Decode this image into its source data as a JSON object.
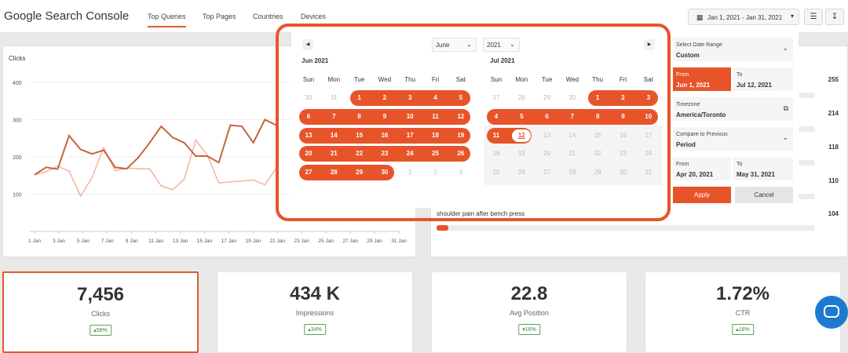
{
  "app": {
    "title": "Google Search Console"
  },
  "tabs": [
    {
      "label": "Top Queries",
      "active": true
    },
    {
      "label": "Top Pages",
      "active": false
    },
    {
      "label": "Countries",
      "active": false
    },
    {
      "label": "Devices",
      "active": false
    }
  ],
  "toolbar": {
    "date_range": "Jan 1, 2021 - Jan 31, 2021",
    "icons": [
      "calendar-icon",
      "filter-sliders-icon",
      "download-icon"
    ]
  },
  "chart": {
    "label": "Clicks",
    "colors": {
      "primary": "#c8633c",
      "secondary": "#f2b9a3"
    }
  },
  "chart_data": {
    "type": "line",
    "title": "",
    "ylabel": "Clicks",
    "xlabel": "",
    "ylim": [
      0,
      400
    ],
    "yticks": [
      "400",
      "300",
      "200",
      "100"
    ],
    "x_tick_labels": [
      "1 Jan",
      "3 Jan",
      "5 Jan",
      "7 Jan",
      "9 Jan",
      "11 Jan",
      "13 Jan",
      "15 Jan",
      "17 Jan",
      "19 Jan",
      "21 Jan",
      "23 Jan",
      "25 Jan",
      "27 Jan",
      "29 Jan",
      "31 Jan"
    ],
    "x": [
      1,
      2,
      3,
      4,
      5,
      6,
      7,
      8,
      9,
      10,
      11,
      12,
      13,
      14,
      15,
      16,
      17,
      18,
      19,
      20,
      21,
      22
    ],
    "series": [
      {
        "values": [
          152,
          172,
          167,
          257,
          220,
          208,
          218,
          172,
          168,
          198,
          238,
          282,
          252,
          238,
          202,
          202,
          185,
          285,
          282,
          238,
          300,
          285
        ]
      },
      {
        "values": [
          152,
          160,
          175,
          162,
          95,
          145,
          225,
          163,
          170,
          168,
          168,
          122,
          112,
          140,
          245,
          205,
          130,
          133,
          135,
          138,
          125,
          170
        ]
      }
    ]
  },
  "queries": {
    "visible_query": "shoulder pain after bench press",
    "values": [
      "255",
      "214",
      "118",
      "110",
      "104"
    ]
  },
  "stats": [
    {
      "value": "7,456",
      "label": "Clicks",
      "change": "58%",
      "dir": "up"
    },
    {
      "value": "434 K",
      "label": "Impressions",
      "change": "34%",
      "dir": "up"
    },
    {
      "value": "22.8",
      "label": "Avg Position",
      "change": "16%",
      "dir": "down"
    },
    {
      "value": "1.72%",
      "label": "CTR",
      "change": "18%",
      "dir": "up"
    }
  ],
  "calendar": {
    "month_select": "June",
    "year_select": "2021",
    "left": {
      "title": "Jun 2021"
    },
    "right": {
      "title": "Jul 2021"
    },
    "weekdays": [
      "Sun",
      "Mon",
      "Tue",
      "Wed",
      "Thu",
      "Fri",
      "Sat"
    ],
    "left_days": [
      [
        "30",
        "out"
      ],
      [
        "31",
        "out"
      ],
      [
        "1",
        "in"
      ],
      [
        "2",
        "in"
      ],
      [
        "3",
        "in"
      ],
      [
        "4",
        "in"
      ],
      [
        "5",
        "in"
      ],
      [
        "6",
        "in"
      ],
      [
        "7",
        "in"
      ],
      [
        "8",
        "in"
      ],
      [
        "9",
        "in"
      ],
      [
        "10",
        "in"
      ],
      [
        "11",
        "in"
      ],
      [
        "12",
        "in"
      ],
      [
        "13",
        "in"
      ],
      [
        "14",
        "in"
      ],
      [
        "15",
        "in"
      ],
      [
        "16",
        "in"
      ],
      [
        "17",
        "in"
      ],
      [
        "18",
        "in"
      ],
      [
        "19",
        "in"
      ],
      [
        "20",
        "in"
      ],
      [
        "21",
        "in"
      ],
      [
        "22",
        "in"
      ],
      [
        "23",
        "in"
      ],
      [
        "24",
        "in"
      ],
      [
        "25",
        "in"
      ],
      [
        "26",
        "in"
      ],
      [
        "27",
        "in"
      ],
      [
        "28",
        "in"
      ],
      [
        "29",
        "in"
      ],
      [
        "30",
        "in"
      ],
      [
        "1",
        "out"
      ],
      [
        "2",
        "out"
      ],
      [
        "3",
        "out"
      ]
    ],
    "right_days": [
      [
        "27",
        "out"
      ],
      [
        "28",
        "out"
      ],
      [
        "29",
        "out"
      ],
      [
        "30",
        "out"
      ],
      [
        "1",
        "in"
      ],
      [
        "2",
        "in"
      ],
      [
        "3",
        "in"
      ],
      [
        "4",
        "in"
      ],
      [
        "5",
        "in"
      ],
      [
        "6",
        "in"
      ],
      [
        "7",
        "in"
      ],
      [
        "8",
        "in"
      ],
      [
        "9",
        "in"
      ],
      [
        "10",
        "in"
      ],
      [
        "11",
        "in"
      ],
      [
        "12",
        "today"
      ],
      [
        "13",
        "dis"
      ],
      [
        "14",
        "dis"
      ],
      [
        "15",
        "dis"
      ],
      [
        "16",
        "dis"
      ],
      [
        "17",
        "dis"
      ],
      [
        "18",
        "dis"
      ],
      [
        "19",
        "dis"
      ],
      [
        "20",
        "dis"
      ],
      [
        "21",
        "dis"
      ],
      [
        "22",
        "dis"
      ],
      [
        "23",
        "dis"
      ],
      [
        "24",
        "dis"
      ],
      [
        "25",
        "dis"
      ],
      [
        "26",
        "dis"
      ],
      [
        "27",
        "dis"
      ],
      [
        "28",
        "dis"
      ],
      [
        "29",
        "dis"
      ],
      [
        "30",
        "dis"
      ],
      [
        "31",
        "dis"
      ]
    ]
  },
  "range_panel": {
    "select_label": "Select Date Range",
    "select_value": "Custom",
    "from_label": "From",
    "from_value": "Jun 1, 2021",
    "to_label": "To",
    "to_value": "Jul 12, 2021",
    "tz_label": "Timezone",
    "tz_value": "America/Toronto",
    "compare_label": "Compare to Previous",
    "compare_value": "Period",
    "cmp_from_label": "From",
    "cmp_from_value": "Apr 20, 2021",
    "cmp_to_label": "To",
    "cmp_to_value": "May 31, 2021",
    "apply": "Apply",
    "cancel": "Cancel",
    "accent": "#e8542a"
  }
}
